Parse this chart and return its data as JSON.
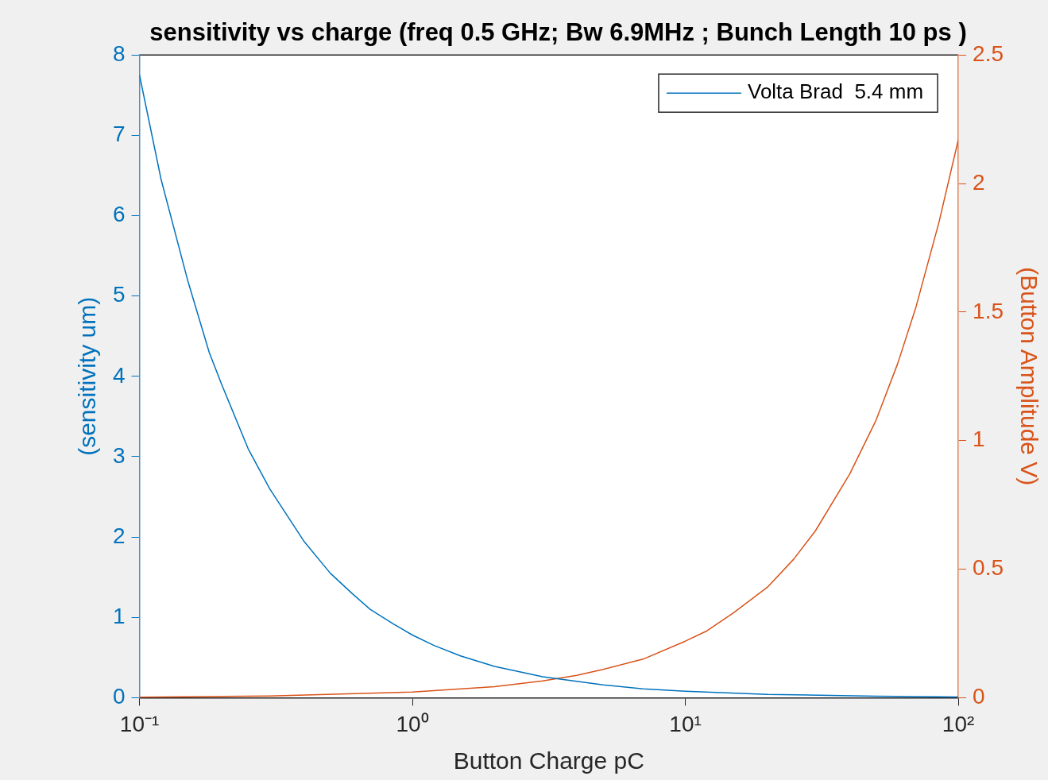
{
  "chart_data": {
    "type": "line",
    "title": "sensitivity vs charge (freq 0.5 GHz; Bw 6.9MHz ; Bunch Length 10 ps )",
    "xlabel": "Button Charge pC",
    "ylabel": "(sensitivity um)",
    "y2label": "(Button Amplitude V)",
    "log": "x",
    "grid": false,
    "legend": "top right",
    "marker": "none",
    "line_style": "solid",
    "xlim": [
      0.1,
      100
    ],
    "xticks": [
      {
        "value": 0.1,
        "label": "10⁻¹"
      },
      {
        "value": 1,
        "label": "10⁰"
      },
      {
        "value": 10,
        "label": "10¹"
      },
      {
        "value": 100,
        "label": "10²"
      }
    ],
    "ylim": [
      0,
      8
    ],
    "yticks": [
      0,
      1,
      2,
      3,
      4,
      5,
      6,
      7,
      8
    ],
    "y2lim": [
      0,
      2.5
    ],
    "y2ticks": [
      0,
      0.5,
      1,
      1.5,
      2,
      2.5
    ],
    "series": [
      {
        "name": "Volta Brad  5.4 mm",
        "color": "#0072bd",
        "x": [
          0.1,
          0.12,
          0.15,
          0.18,
          0.2,
          0.25,
          0.3,
          0.4,
          0.5,
          0.6,
          0.7,
          0.85,
          1,
          1.2,
          1.5,
          2,
          3,
          5,
          7,
          10,
          20,
          50,
          100
        ],
        "values": [
          7.75,
          6.45,
          5.2,
          4.3,
          3.9,
          3.1,
          2.6,
          1.95,
          1.55,
          1.3,
          1.1,
          0.92,
          0.78,
          0.65,
          0.52,
          0.39,
          0.26,
          0.16,
          0.11,
          0.08,
          0.04,
          0.02,
          0.01
        ]
      },
      {
        "color": "#d95319",
        "axis": "y2",
        "x": [
          0.1,
          0.3,
          1,
          2,
          3,
          4,
          5,
          7,
          10,
          12,
          15,
          20,
          25,
          30,
          40,
          50,
          60,
          70,
          85,
          100
        ],
        "values": [
          0.002,
          0.007,
          0.022,
          0.043,
          0.065,
          0.087,
          0.11,
          0.15,
          0.22,
          0.26,
          0.33,
          0.43,
          0.54,
          0.65,
          0.87,
          1.08,
          1.3,
          1.52,
          1.85,
          2.17
        ]
      }
    ]
  }
}
